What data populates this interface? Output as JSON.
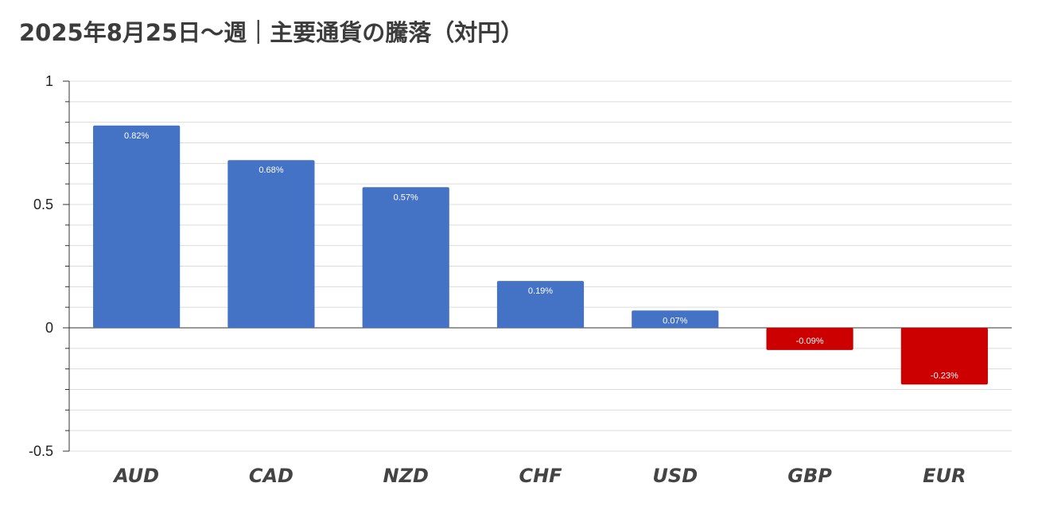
{
  "title": "2025年8月25日〜週｜主要通貨の騰落（対円）",
  "colors": {
    "positive": "#4472c4",
    "negative": "#cc0000",
    "grid": "#dcdcdc",
    "axis": "#333333"
  },
  "chart_data": {
    "type": "bar",
    "title": "2025年8月25日〜週｜主要通貨の騰落（対円）",
    "xlabel": "",
    "ylabel": "",
    "categories": [
      "AUD",
      "CAD",
      "NZD",
      "CHF",
      "USD",
      "GBP",
      "EUR"
    ],
    "values": [
      0.82,
      0.68,
      0.57,
      0.19,
      0.07,
      -0.09,
      -0.23
    ],
    "data_labels": [
      "0.82%",
      "0.68%",
      "0.57%",
      "0.19%",
      "0.07%",
      "-0.09%",
      "-0.23%"
    ],
    "ylim": [
      -0.5,
      1
    ],
    "yticks": [
      1,
      0.5,
      0,
      -0.5
    ],
    "ytick_labels": [
      "1",
      "0.5",
      "0",
      "-0.5"
    ],
    "minor_step": 0.083333,
    "grid": true,
    "legend": "none"
  }
}
